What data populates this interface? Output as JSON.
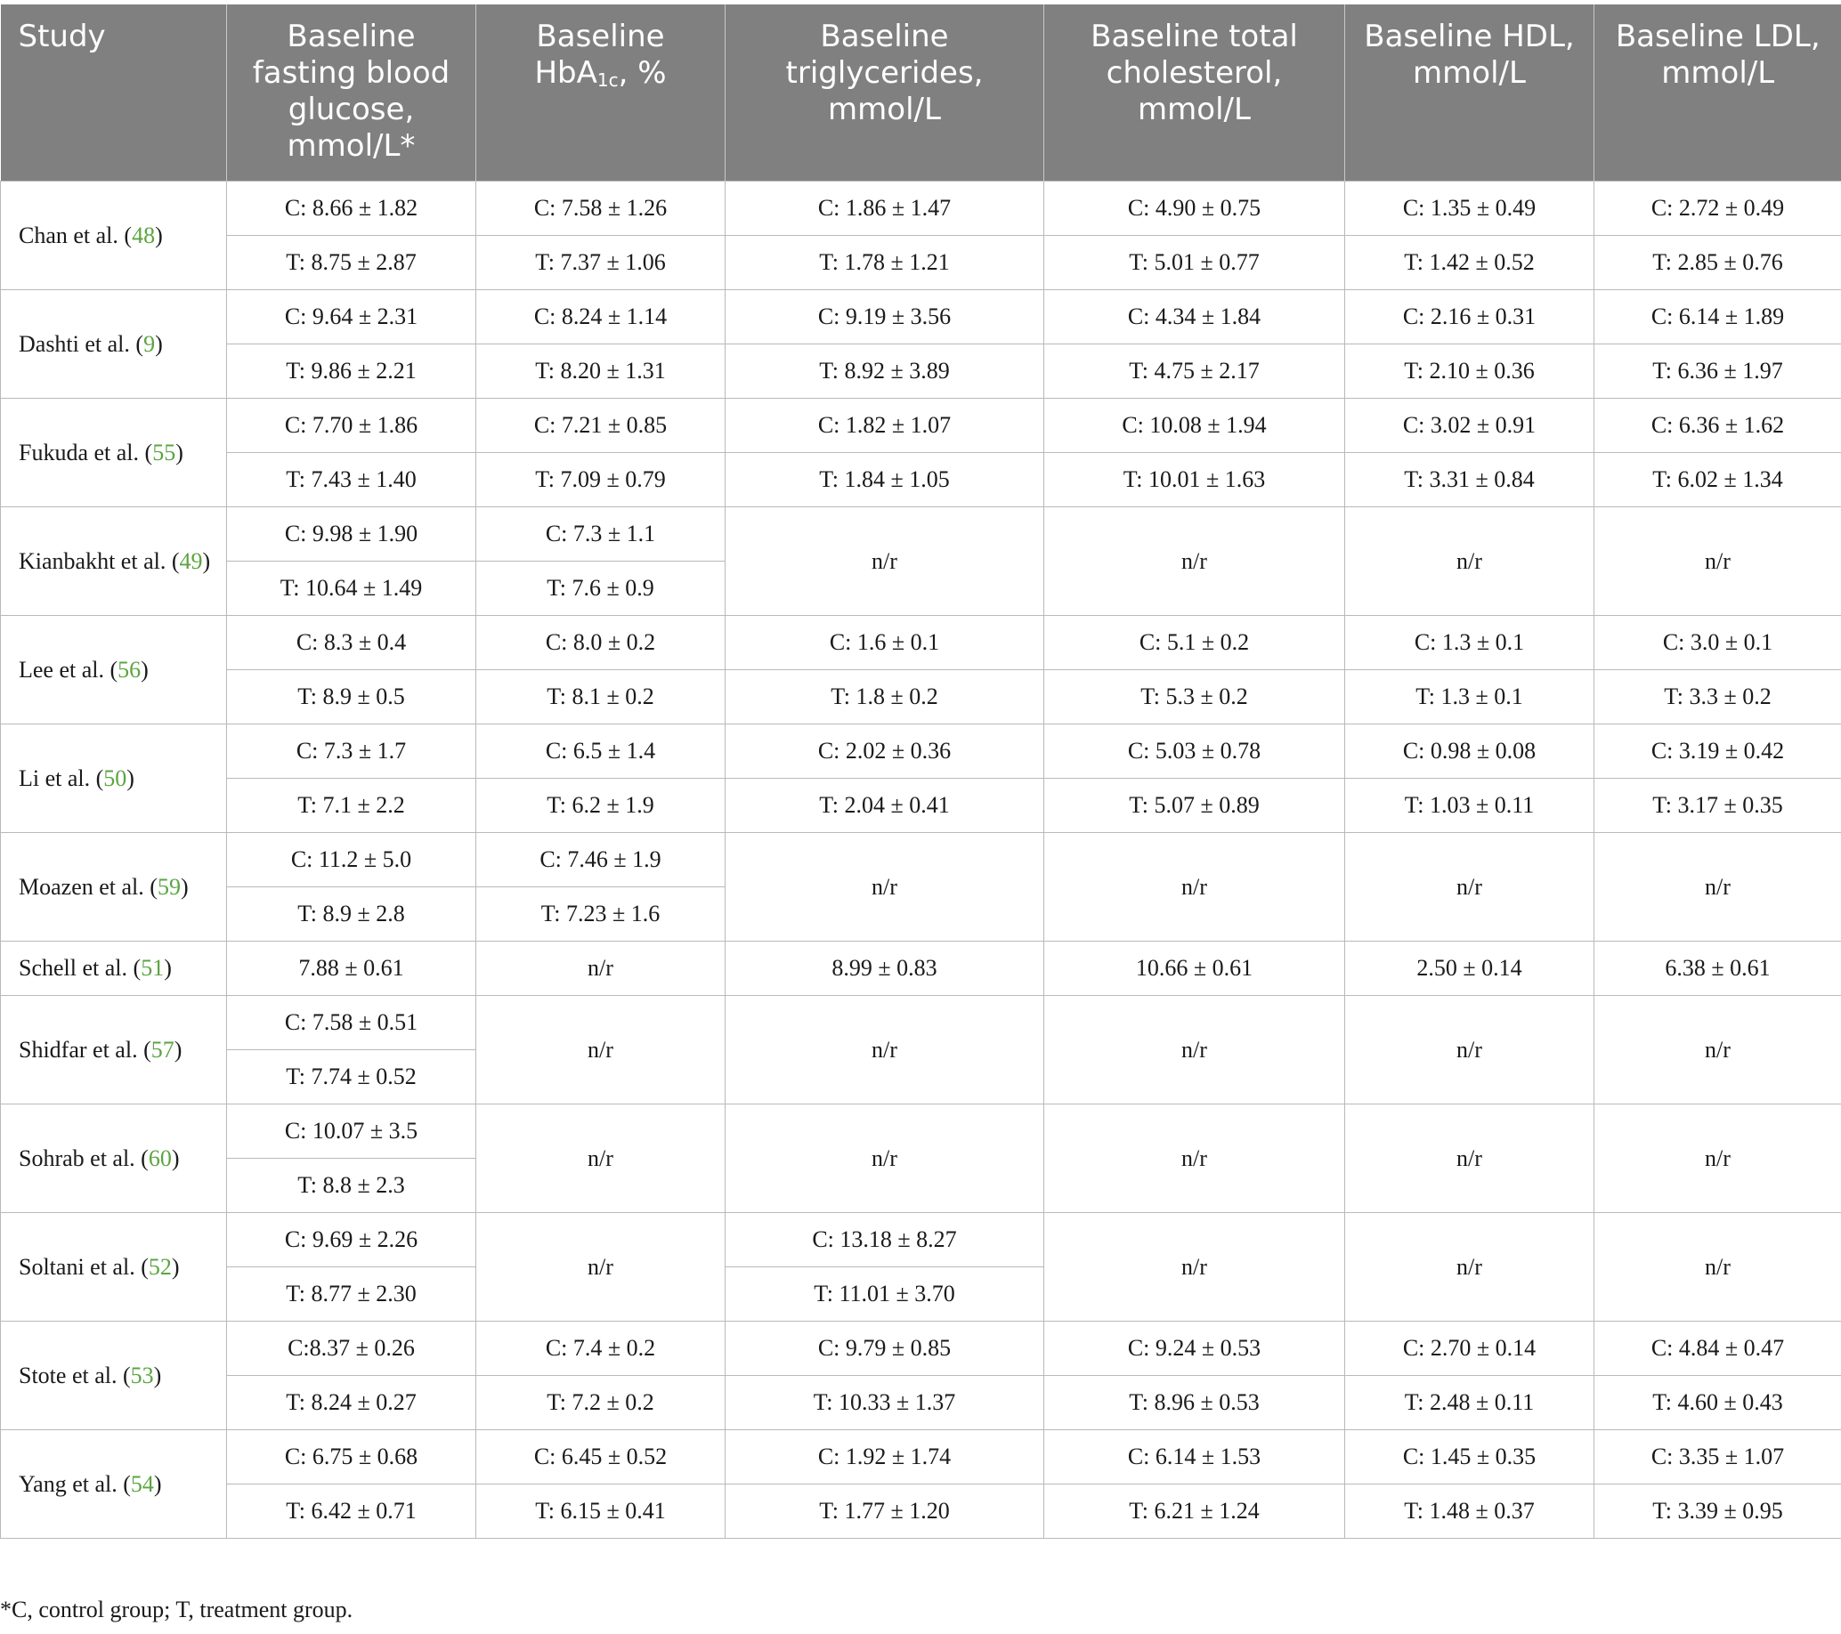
{
  "headers": {
    "study": "Study",
    "fbg": "Baseline fasting blood glucose, mmol/L*",
    "hba1c_pre": "Baseline HbA",
    "hba1c_sub": "1c",
    "hba1c_post": ", %",
    "tg": "Baseline triglycerides, mmol/L",
    "tc": "Baseline total cholesterol, mmol/L",
    "hdl": "Baseline HDL, mmol/L",
    "ldl": "Baseline LDL, mmol/L"
  },
  "rows": [
    {
      "name": "Chan et al. (",
      "ref": "48",
      "close": ")",
      "fbg": [
        "C: 8.66 ± 1.82",
        "T: 8.75 ± 2.87"
      ],
      "hba1c": [
        "C: 7.58 ± 1.26",
        "T: 7.37 ± 1.06"
      ],
      "tg": [
        "C: 1.86 ± 1.47",
        "T: 1.78 ± 1.21"
      ],
      "tc": [
        "C: 4.90 ± 0.75",
        "T: 5.01 ± 0.77"
      ],
      "hdl": [
        "C: 1.35 ± 0.49",
        "T: 1.42 ± 0.52"
      ],
      "ldl": [
        "C: 2.72 ± 0.49",
        "T: 2.85 ± 0.76"
      ]
    },
    {
      "name": "Dashti et al. (",
      "ref": "9",
      "close": ")",
      "fbg": [
        "C: 9.64 ± 2.31",
        "T: 9.86 ± 2.21"
      ],
      "hba1c": [
        "C: 8.24 ± 1.14",
        "T: 8.20 ± 1.31"
      ],
      "tg": [
        "C: 9.19 ± 3.56",
        "T: 8.92 ± 3.89"
      ],
      "tc": [
        "C: 4.34 ± 1.84",
        "T: 4.75 ± 2.17"
      ],
      "hdl": [
        "C: 2.16 ± 0.31",
        "T: 2.10 ± 0.36"
      ],
      "ldl": [
        "C: 6.14 ± 1.89",
        "T: 6.36 ± 1.97"
      ]
    },
    {
      "name": "Fukuda et al. (",
      "ref": "55",
      "close": ")",
      "fbg": [
        "C: 7.70 ± 1.86",
        "T: 7.43 ± 1.40"
      ],
      "hba1c": [
        "C: 7.21 ± 0.85",
        "T: 7.09 ± 0.79"
      ],
      "tg": [
        "C: 1.82 ± 1.07",
        "T: 1.84 ± 1.05"
      ],
      "tc": [
        "C: 10.08 ± 1.94",
        "T: 10.01 ± 1.63"
      ],
      "hdl": [
        "C: 3.02 ± 0.91",
        "T: 3.31 ± 0.84"
      ],
      "ldl": [
        "C: 6.36 ± 1.62",
        "T: 6.02 ± 1.34"
      ]
    },
    {
      "name": "Kianbakht et al. (",
      "ref": "49",
      "close": ")",
      "fbg": [
        "C: 9.98 ± 1.90",
        "T: 10.64 ± 1.49"
      ],
      "hba1c": [
        "C: 7.3 ± 1.1",
        "T: 7.6 ± 0.9"
      ],
      "tg": "n/r",
      "tc": "n/r",
      "hdl": "n/r",
      "ldl": "n/r"
    },
    {
      "name": "Lee et al. (",
      "ref": "56",
      "close": ")",
      "fbg": [
        "C: 8.3 ± 0.4",
        "T: 8.9 ± 0.5"
      ],
      "hba1c": [
        "C: 8.0 ± 0.2",
        "T: 8.1 ± 0.2"
      ],
      "tg": [
        "C: 1.6 ± 0.1",
        "T: 1.8 ± 0.2"
      ],
      "tc": [
        "C: 5.1 ± 0.2",
        "T: 5.3 ± 0.2"
      ],
      "hdl": [
        "C: 1.3 ± 0.1",
        "T: 1.3 ± 0.1"
      ],
      "ldl": [
        "C: 3.0 ± 0.1",
        "T: 3.3 ± 0.2"
      ]
    },
    {
      "name": "Li et al. (",
      "ref": "50",
      "close": ")",
      "fbg": [
        "C: 7.3 ± 1.7",
        "T: 7.1 ± 2.2"
      ],
      "hba1c": [
        "C: 6.5 ± 1.4",
        "T: 6.2 ± 1.9"
      ],
      "tg": [
        "C: 2.02 ± 0.36",
        "T: 2.04 ± 0.41"
      ],
      "tc": [
        "C: 5.03 ± 0.78",
        "T: 5.07 ± 0.89"
      ],
      "hdl": [
        "C: 0.98 ± 0.08",
        "T: 1.03 ± 0.11"
      ],
      "ldl": [
        "C: 3.19 ± 0.42",
        "T: 3.17 ± 0.35"
      ]
    },
    {
      "name": "Moazen et al. (",
      "ref": "59",
      "close": ")",
      "fbg": [
        "C: 11.2 ± 5.0",
        "T: 8.9 ± 2.8"
      ],
      "hba1c": [
        "C: 7.46 ± 1.9",
        "T: 7.23 ± 1.6"
      ],
      "tg": "n/r",
      "tc": "n/r",
      "hdl": "n/r",
      "ldl": "n/r"
    },
    {
      "name": "Schell et al. (",
      "ref": "51",
      "close": ")",
      "fbg": "7.88 ± 0.61",
      "hba1c": "n/r",
      "tg": "8.99 ± 0.83",
      "tc": "10.66 ± 0.61",
      "hdl": "2.50 ± 0.14",
      "ldl": "6.38 ± 0.61"
    },
    {
      "name": "Shidfar et al. (",
      "ref": "57",
      "close": ")",
      "fbg": [
        "C: 7.58 ± 0.51",
        "T: 7.74 ± 0.52"
      ],
      "hba1c": "n/r",
      "tg": "n/r",
      "tc": "n/r",
      "hdl": "n/r",
      "ldl": "n/r"
    },
    {
      "name": "Sohrab et al. (",
      "ref": "60",
      "close": ")",
      "fbg": [
        "C: 10.07 ± 3.5",
        "T: 8.8 ± 2.3"
      ],
      "hba1c": "n/r",
      "tg": "n/r",
      "tc": "n/r",
      "hdl": "n/r",
      "ldl": "n/r"
    },
    {
      "name": "Soltani et al. (",
      "ref": "52",
      "close": ")",
      "fbg": [
        "C: 9.69 ± 2.26",
        "T: 8.77 ± 2.30"
      ],
      "hba1c": "n/r",
      "tg": [
        "C: 13.18 ± 8.27",
        "T: 11.01 ± 3.70"
      ],
      "tc": "n/r",
      "hdl": "n/r",
      "ldl": "n/r"
    },
    {
      "name": "Stote et al. (",
      "ref": "53",
      "close": ")",
      "fbg": [
        "C:8.37 ± 0.26",
        "T: 8.24 ± 0.27"
      ],
      "hba1c": [
        "C: 7.4 ± 0.2",
        "T: 7.2 ± 0.2"
      ],
      "tg": [
        "C: 9.79 ± 0.85",
        "T: 10.33 ± 1.37"
      ],
      "tc": [
        "C: 9.24 ± 0.53",
        "T: 8.96 ± 0.53"
      ],
      "hdl": [
        "C: 2.70 ± 0.14",
        "T: 2.48 ± 0.11"
      ],
      "ldl": [
        "C: 4.84 ± 0.47",
        "T: 4.60 ± 0.43"
      ]
    },
    {
      "name": "Yang et al. (",
      "ref": "54",
      "close": ")",
      "fbg": [
        "C: 6.75 ± 0.68",
        "T: 6.42 ± 0.71"
      ],
      "hba1c": [
        "C: 6.45 ± 0.52",
        "T: 6.15 ± 0.41"
      ],
      "tg": [
        "C: 1.92 ± 1.74",
        "T: 1.77 ± 1.20"
      ],
      "tc": [
        "C: 6.14 ± 1.53",
        "T: 6.21 ± 1.24"
      ],
      "hdl": [
        "C: 1.45 ± 0.35",
        "T: 1.48 ± 0.37"
      ],
      "ldl": [
        "C: 3.35 ± 1.07",
        "T: 3.39 ± 0.95"
      ]
    }
  ],
  "footnote": "*C, control group; T, treatment group.",
  "colors": {
    "header_bg": "#7f807f",
    "header_text": "#ffffff",
    "ref_link": "#5aa540",
    "grid": "#b9b9b9"
  }
}
